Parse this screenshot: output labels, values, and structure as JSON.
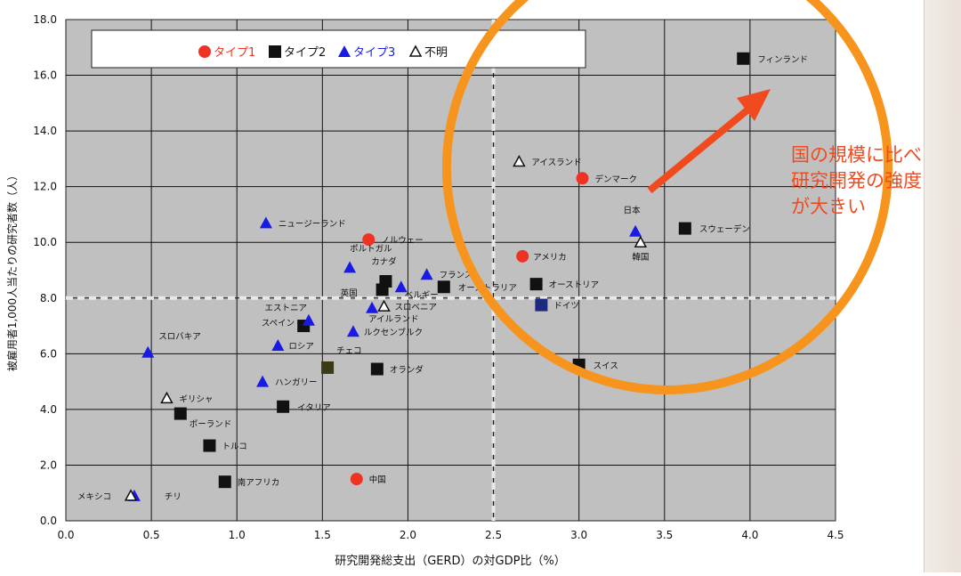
{
  "chart_data": {
    "type": "scatter",
    "xlabel": "研究開発総支出（GERD）の対GDP比（%）",
    "ylabel": "被雇用者1,000人当たりの研究者数（人）",
    "xlim": [
      0,
      4.5
    ],
    "ylim": [
      0,
      18
    ],
    "x_ticks": [
      "0.0",
      "0.5",
      "1.0",
      "1.5",
      "2.0",
      "2.5",
      "3.0",
      "3.5",
      "4.0",
      "4.5"
    ],
    "y_ticks": [
      "0.0",
      "2.0",
      "4.0",
      "6.0",
      "8.0",
      "10.0",
      "12.0",
      "14.0",
      "16.0",
      "18.0"
    ],
    "grid": true,
    "reference_lines": {
      "x": 2.5,
      "y": 8.0
    },
    "legend": {
      "placement": "top-left",
      "items": [
        {
          "label": "タイプ1",
          "marker": "circle",
          "color": "#ee3322"
        },
        {
          "label": "タイプ2",
          "marker": "square",
          "color": "#111111"
        },
        {
          "label": "タイプ3",
          "marker": "triangle",
          "color": "#1a1ae6"
        },
        {
          "label": "不明",
          "marker": "open-triangle",
          "color": "#111111"
        }
      ]
    },
    "series": [
      {
        "name": "タイプ1",
        "marker": "circle",
        "color": "#ee3322",
        "points": [
          {
            "label": "ノルウェー",
            "x": 1.77,
            "y": 10.1
          },
          {
            "label": "デンマーク",
            "x": 3.02,
            "y": 12.3
          },
          {
            "label": "アメリカ",
            "x": 2.67,
            "y": 9.5
          },
          {
            "label": "中国",
            "x": 1.7,
            "y": 1.5
          }
        ]
      },
      {
        "name": "タイプ2",
        "marker": "square",
        "color": "#111111",
        "points": [
          {
            "label": "フィンランド",
            "x": 3.96,
            "y": 16.6
          },
          {
            "label": "スウェーデン",
            "x": 3.62,
            "y": 10.5
          },
          {
            "label": "オーストリア",
            "x": 2.75,
            "y": 8.5
          },
          {
            "label": "ドイツ",
            "x": 2.78,
            "y": 7.75
          },
          {
            "label": "スイス",
            "x": 3.0,
            "y": 5.6
          },
          {
            "label": "オーストラリア",
            "x": 2.21,
            "y": 8.4
          },
          {
            "label": "カナダ",
            "x": 1.87,
            "y": 8.6
          },
          {
            "label": "英国",
            "x": 1.85,
            "y": 8.3
          },
          {
            "label": "スペイン",
            "x": 1.39,
            "y": 7.0
          },
          {
            "label": "オランダ",
            "x": 1.82,
            "y": 5.45
          },
          {
            "label": "チェコ",
            "x": 1.53,
            "y": 5.5
          },
          {
            "label": "イタリア",
            "x": 1.27,
            "y": 4.1
          },
          {
            "label": "ポーランド",
            "x": 0.67,
            "y": 3.85
          },
          {
            "label": "トルコ",
            "x": 0.84,
            "y": 2.7
          },
          {
            "label": "南アフリカ",
            "x": 0.93,
            "y": 1.4
          }
        ]
      },
      {
        "name": "タイプ3",
        "marker": "triangle",
        "color": "#1a1ae6",
        "points": [
          {
            "label": "日本",
            "x": 3.33,
            "y": 10.4
          },
          {
            "label": "ニュージーランド",
            "x": 1.17,
            "y": 10.7
          },
          {
            "label": "ポルトガル",
            "x": 1.66,
            "y": 9.1
          },
          {
            "label": "フランス",
            "x": 2.11,
            "y": 8.85
          },
          {
            "label": "ベルギー",
            "x": 1.96,
            "y": 8.4
          },
          {
            "label": "アイルランド",
            "x": 1.79,
            "y": 7.65
          },
          {
            "label": "エストニア",
            "x": 1.42,
            "y": 7.2
          },
          {
            "label": "ルクセンブルク",
            "x": 1.68,
            "y": 6.8
          },
          {
            "label": "ロシア",
            "x": 1.24,
            "y": 6.3
          },
          {
            "label": "スロバキア",
            "x": 0.48,
            "y": 6.05
          },
          {
            "label": "ハンガリー",
            "x": 1.15,
            "y": 5.0
          },
          {
            "label": "チリ",
            "x": 0.4,
            "y": 0.9
          }
        ]
      },
      {
        "name": "不明",
        "marker": "open-triangle",
        "color": "#111111",
        "points": [
          {
            "label": "アイスランド",
            "x": 2.65,
            "y": 12.9
          },
          {
            "label": "韓国",
            "x": 3.36,
            "y": 10.0
          },
          {
            "label": "スロベニア",
            "x": 1.86,
            "y": 7.7
          },
          {
            "label": "ギリシャ",
            "x": 0.59,
            "y": 4.4
          },
          {
            "label": "メキシコ",
            "x": 0.38,
            "y": 0.9
          }
        ]
      }
    ]
  },
  "annotation": {
    "lines": [
      "国の規模に比べ",
      "研究開発の強度",
      "が大きい"
    ],
    "color": "#f04a1e",
    "ring_color": "#f7941d",
    "arrow_color": "#f04a1e"
  }
}
